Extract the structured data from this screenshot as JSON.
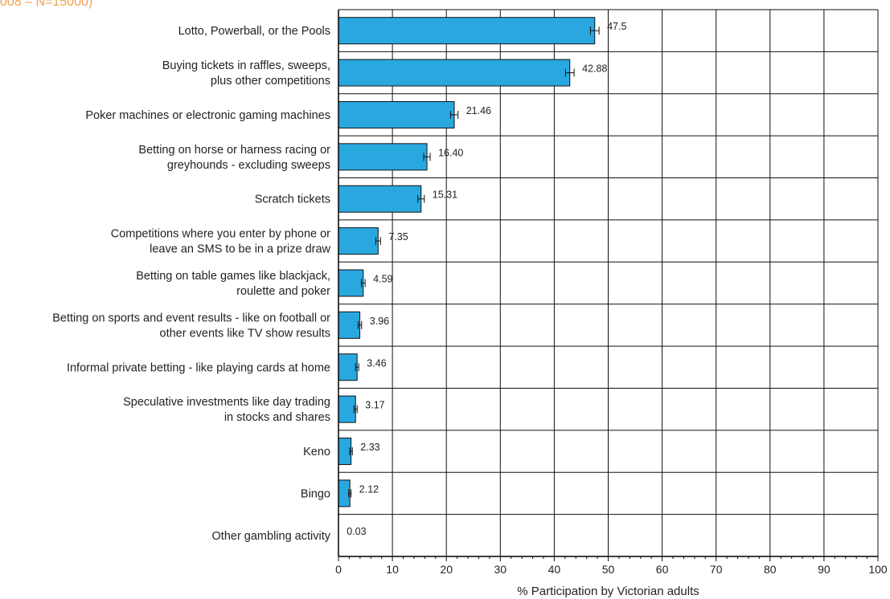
{
  "subtitle": "008 – N=15000)",
  "colors": {
    "bar": "#29a8e0",
    "bar_edge": "#111111",
    "accent": "#f0a050",
    "grid": "#111111"
  },
  "chart_data": {
    "type": "bar",
    "orientation": "horizontal",
    "categories": [
      [
        "Lotto, Powerball, or the Pools"
      ],
      [
        "Buying tickets in raffles, sweeps,",
        "plus other competitions"
      ],
      [
        "Poker machines or electronic gaming machines"
      ],
      [
        "Betting on horse or harness racing or",
        "greyhounds - excluding sweeps"
      ],
      [
        "Scratch tickets"
      ],
      [
        "Competitions where you enter by phone or",
        "leave an SMS to be in a prize draw"
      ],
      [
        "Betting on table games like blackjack,",
        "roulette and poker"
      ],
      [
        "Betting on sports and event results - like on football or",
        "other events like TV show results"
      ],
      [
        "Informal private betting - like playing cards at home"
      ],
      [
        "Speculative investments like day trading",
        "in stocks and shares"
      ],
      [
        "Keno"
      ],
      [
        "Bingo"
      ],
      [
        "Other gambling activity"
      ]
    ],
    "values": [
      47.5,
      42.88,
      21.46,
      16.4,
      15.31,
      7.35,
      4.59,
      3.96,
      3.46,
      3.17,
      2.33,
      2.12,
      0.03
    ],
    "value_labels": [
      "47.5",
      "42.88",
      "21.46",
      "16.40",
      "15.31",
      "7.35",
      "4.59",
      "3.96",
      "3.46",
      "3.17",
      "2.33",
      "2.12",
      "0.03"
    ],
    "error_margins": [
      0.8,
      0.8,
      0.7,
      0.6,
      0.6,
      0.45,
      0.35,
      0.33,
      0.3,
      0.3,
      0.25,
      0.23,
      0.0
    ],
    "xlim": [
      0,
      100
    ],
    "xticks": [
      0,
      10,
      20,
      30,
      40,
      50,
      60,
      70,
      80,
      90,
      100
    ],
    "xlabel": "% Participation by Victorian adults",
    "grid": true
  }
}
